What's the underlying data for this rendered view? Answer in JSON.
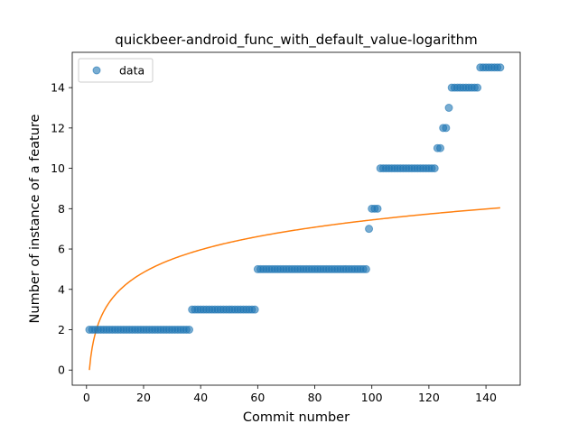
{
  "chart_data": {
    "type": "scatter",
    "title": "quickbeer-android_func_with_default_value-logarithm",
    "xlabel": "Commit number",
    "ylabel": "Number of instance of a feature",
    "xlim": [
      -5,
      152
    ],
    "ylim": [
      -0.75,
      15.75
    ],
    "xticks": [
      0,
      20,
      40,
      60,
      80,
      100,
      120,
      140
    ],
    "yticks": [
      0,
      2,
      4,
      6,
      8,
      10,
      12,
      14
    ],
    "grid": false,
    "legend": {
      "placement": "top-left",
      "entries": [
        "data"
      ]
    },
    "colors": {
      "data": "#1f77b4",
      "fit": "#ff7f0e"
    },
    "series": [
      {
        "name": "data",
        "kind": "scatter",
        "points": [
          [
            1,
            2
          ],
          [
            2,
            2
          ],
          [
            3,
            2
          ],
          [
            4,
            2
          ],
          [
            5,
            2
          ],
          [
            6,
            2
          ],
          [
            7,
            2
          ],
          [
            8,
            2
          ],
          [
            9,
            2
          ],
          [
            10,
            2
          ],
          [
            11,
            2
          ],
          [
            12,
            2
          ],
          [
            13,
            2
          ],
          [
            14,
            2
          ],
          [
            15,
            2
          ],
          [
            16,
            2
          ],
          [
            17,
            2
          ],
          [
            18,
            2
          ],
          [
            19,
            2
          ],
          [
            20,
            2
          ],
          [
            21,
            2
          ],
          [
            22,
            2
          ],
          [
            23,
            2
          ],
          [
            24,
            2
          ],
          [
            25,
            2
          ],
          [
            26,
            2
          ],
          [
            27,
            2
          ],
          [
            28,
            2
          ],
          [
            29,
            2
          ],
          [
            30,
            2
          ],
          [
            31,
            2
          ],
          [
            32,
            2
          ],
          [
            33,
            2
          ],
          [
            34,
            2
          ],
          [
            35,
            2
          ],
          [
            36,
            2
          ],
          [
            37,
            3
          ],
          [
            38,
            3
          ],
          [
            39,
            3
          ],
          [
            40,
            3
          ],
          [
            41,
            3
          ],
          [
            42,
            3
          ],
          [
            43,
            3
          ],
          [
            44,
            3
          ],
          [
            45,
            3
          ],
          [
            46,
            3
          ],
          [
            47,
            3
          ],
          [
            48,
            3
          ],
          [
            49,
            3
          ],
          [
            50,
            3
          ],
          [
            51,
            3
          ],
          [
            52,
            3
          ],
          [
            53,
            3
          ],
          [
            54,
            3
          ],
          [
            55,
            3
          ],
          [
            56,
            3
          ],
          [
            57,
            3
          ],
          [
            58,
            3
          ],
          [
            59,
            3
          ],
          [
            60,
            5
          ],
          [
            61,
            5
          ],
          [
            62,
            5
          ],
          [
            63,
            5
          ],
          [
            64,
            5
          ],
          [
            65,
            5
          ],
          [
            66,
            5
          ],
          [
            67,
            5
          ],
          [
            68,
            5
          ],
          [
            69,
            5
          ],
          [
            70,
            5
          ],
          [
            71,
            5
          ],
          [
            72,
            5
          ],
          [
            73,
            5
          ],
          [
            74,
            5
          ],
          [
            75,
            5
          ],
          [
            76,
            5
          ],
          [
            77,
            5
          ],
          [
            78,
            5
          ],
          [
            79,
            5
          ],
          [
            80,
            5
          ],
          [
            81,
            5
          ],
          [
            82,
            5
          ],
          [
            83,
            5
          ],
          [
            84,
            5
          ],
          [
            85,
            5
          ],
          [
            86,
            5
          ],
          [
            87,
            5
          ],
          [
            88,
            5
          ],
          [
            89,
            5
          ],
          [
            90,
            5
          ],
          [
            91,
            5
          ],
          [
            92,
            5
          ],
          [
            93,
            5
          ],
          [
            94,
            5
          ],
          [
            95,
            5
          ],
          [
            96,
            5
          ],
          [
            97,
            5
          ],
          [
            98,
            5
          ],
          [
            99,
            7
          ],
          [
            100,
            8
          ],
          [
            101,
            8
          ],
          [
            102,
            8
          ],
          [
            103,
            10
          ],
          [
            104,
            10
          ],
          [
            105,
            10
          ],
          [
            106,
            10
          ],
          [
            107,
            10
          ],
          [
            108,
            10
          ],
          [
            109,
            10
          ],
          [
            110,
            10
          ],
          [
            111,
            10
          ],
          [
            112,
            10
          ],
          [
            113,
            10
          ],
          [
            114,
            10
          ],
          [
            115,
            10
          ],
          [
            116,
            10
          ],
          [
            117,
            10
          ],
          [
            118,
            10
          ],
          [
            119,
            10
          ],
          [
            120,
            10
          ],
          [
            121,
            10
          ],
          [
            122,
            10
          ],
          [
            123,
            11
          ],
          [
            124,
            11
          ],
          [
            125,
            12
          ],
          [
            126,
            12
          ],
          [
            127,
            13
          ],
          [
            128,
            14
          ],
          [
            129,
            14
          ],
          [
            130,
            14
          ],
          [
            131,
            14
          ],
          [
            132,
            14
          ],
          [
            133,
            14
          ],
          [
            134,
            14
          ],
          [
            135,
            14
          ],
          [
            136,
            14
          ],
          [
            137,
            14
          ],
          [
            138,
            15
          ],
          [
            139,
            15
          ],
          [
            140,
            15
          ],
          [
            141,
            15
          ],
          [
            142,
            15
          ],
          [
            143,
            15
          ],
          [
            144,
            15
          ],
          [
            145,
            15
          ]
        ]
      },
      {
        "kind": "line",
        "model": "logarithmic",
        "a": 0,
        "b": 1.616,
        "x_range": [
          1,
          145
        ]
      }
    ]
  }
}
